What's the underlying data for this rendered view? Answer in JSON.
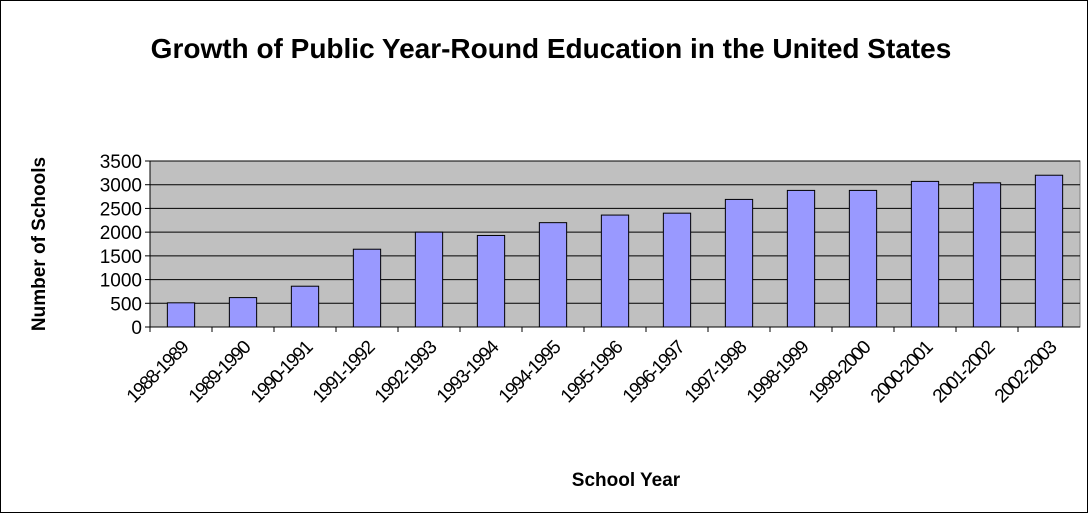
{
  "chart_data": {
    "type": "bar",
    "title": "Growth of Public Year-Round Education in the United States",
    "xlabel": "School Year",
    "ylabel": "Number of Schools",
    "ylim": [
      0,
      3500
    ],
    "yticks": [
      0,
      500,
      1000,
      1500,
      2000,
      2500,
      3000,
      3500
    ],
    "grid": true,
    "categories": [
      "1988-1989",
      "1989-1990",
      "1990-1991",
      "1991-1992",
      "1992-1993",
      "1993-1994",
      "1994-1995",
      "1995-1996",
      "1996-1997",
      "1997-1998",
      "1998-1999",
      "1999-2000",
      "2000-2001",
      "2001-2002",
      "2002-2003"
    ],
    "values": [
      510,
      620,
      860,
      1640,
      2000,
      1930,
      2200,
      2360,
      2400,
      2690,
      2880,
      2880,
      3070,
      3040,
      3200
    ]
  },
  "colors": {
    "plot_bg": "#c0c0c0",
    "bar": "#9999ff",
    "bar_edge": "#000000",
    "grid": "#000000"
  }
}
